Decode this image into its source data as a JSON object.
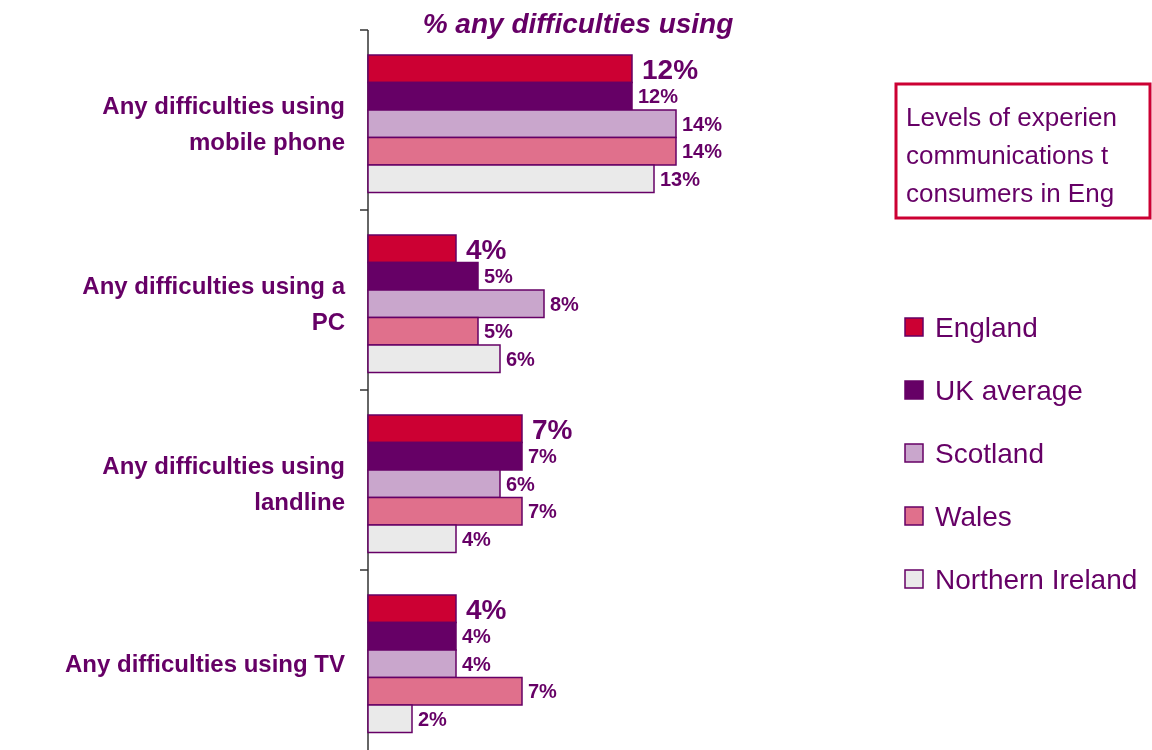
{
  "chart_data": {
    "type": "bar",
    "orientation": "horizontal",
    "title": "% any difficulties using",
    "categories": [
      "Any difficulties using mobile phone",
      "Any difficulties using a PC",
      "Any difficulties using landline",
      "Any difficulties using TV"
    ],
    "series": [
      {
        "name": "England",
        "color": "#cc0033",
        "values": [
          12,
          4,
          7,
          4
        ],
        "value_labels": [
          "12%",
          "4%",
          "7%",
          "4%"
        ]
      },
      {
        "name": "UK average",
        "color": "#660066",
        "values": [
          12,
          5,
          7,
          4
        ],
        "value_labels": [
          "12%",
          "5%",
          "7%",
          "4%"
        ]
      },
      {
        "name": "Scotland",
        "color": "#c9a6cc",
        "values": [
          14,
          8,
          6,
          4
        ],
        "value_labels": [
          "14%",
          "8%",
          "6%",
          "4%"
        ]
      },
      {
        "name": "Wales",
        "color": "#e0708c",
        "values": [
          14,
          5,
          7,
          7
        ],
        "value_labels": [
          "14%",
          "5%",
          "7%",
          "7%"
        ]
      },
      {
        "name": "Northern Ireland",
        "color": "#eaeaea",
        "values": [
          13,
          6,
          4,
          2
        ],
        "value_labels": [
          "13%",
          "6%",
          "4%",
          "2%"
        ]
      }
    ],
    "legend": "right",
    "annotations": [
      "Levels of experien\ncommunications t\nconsumers in Eng"
    ]
  }
}
